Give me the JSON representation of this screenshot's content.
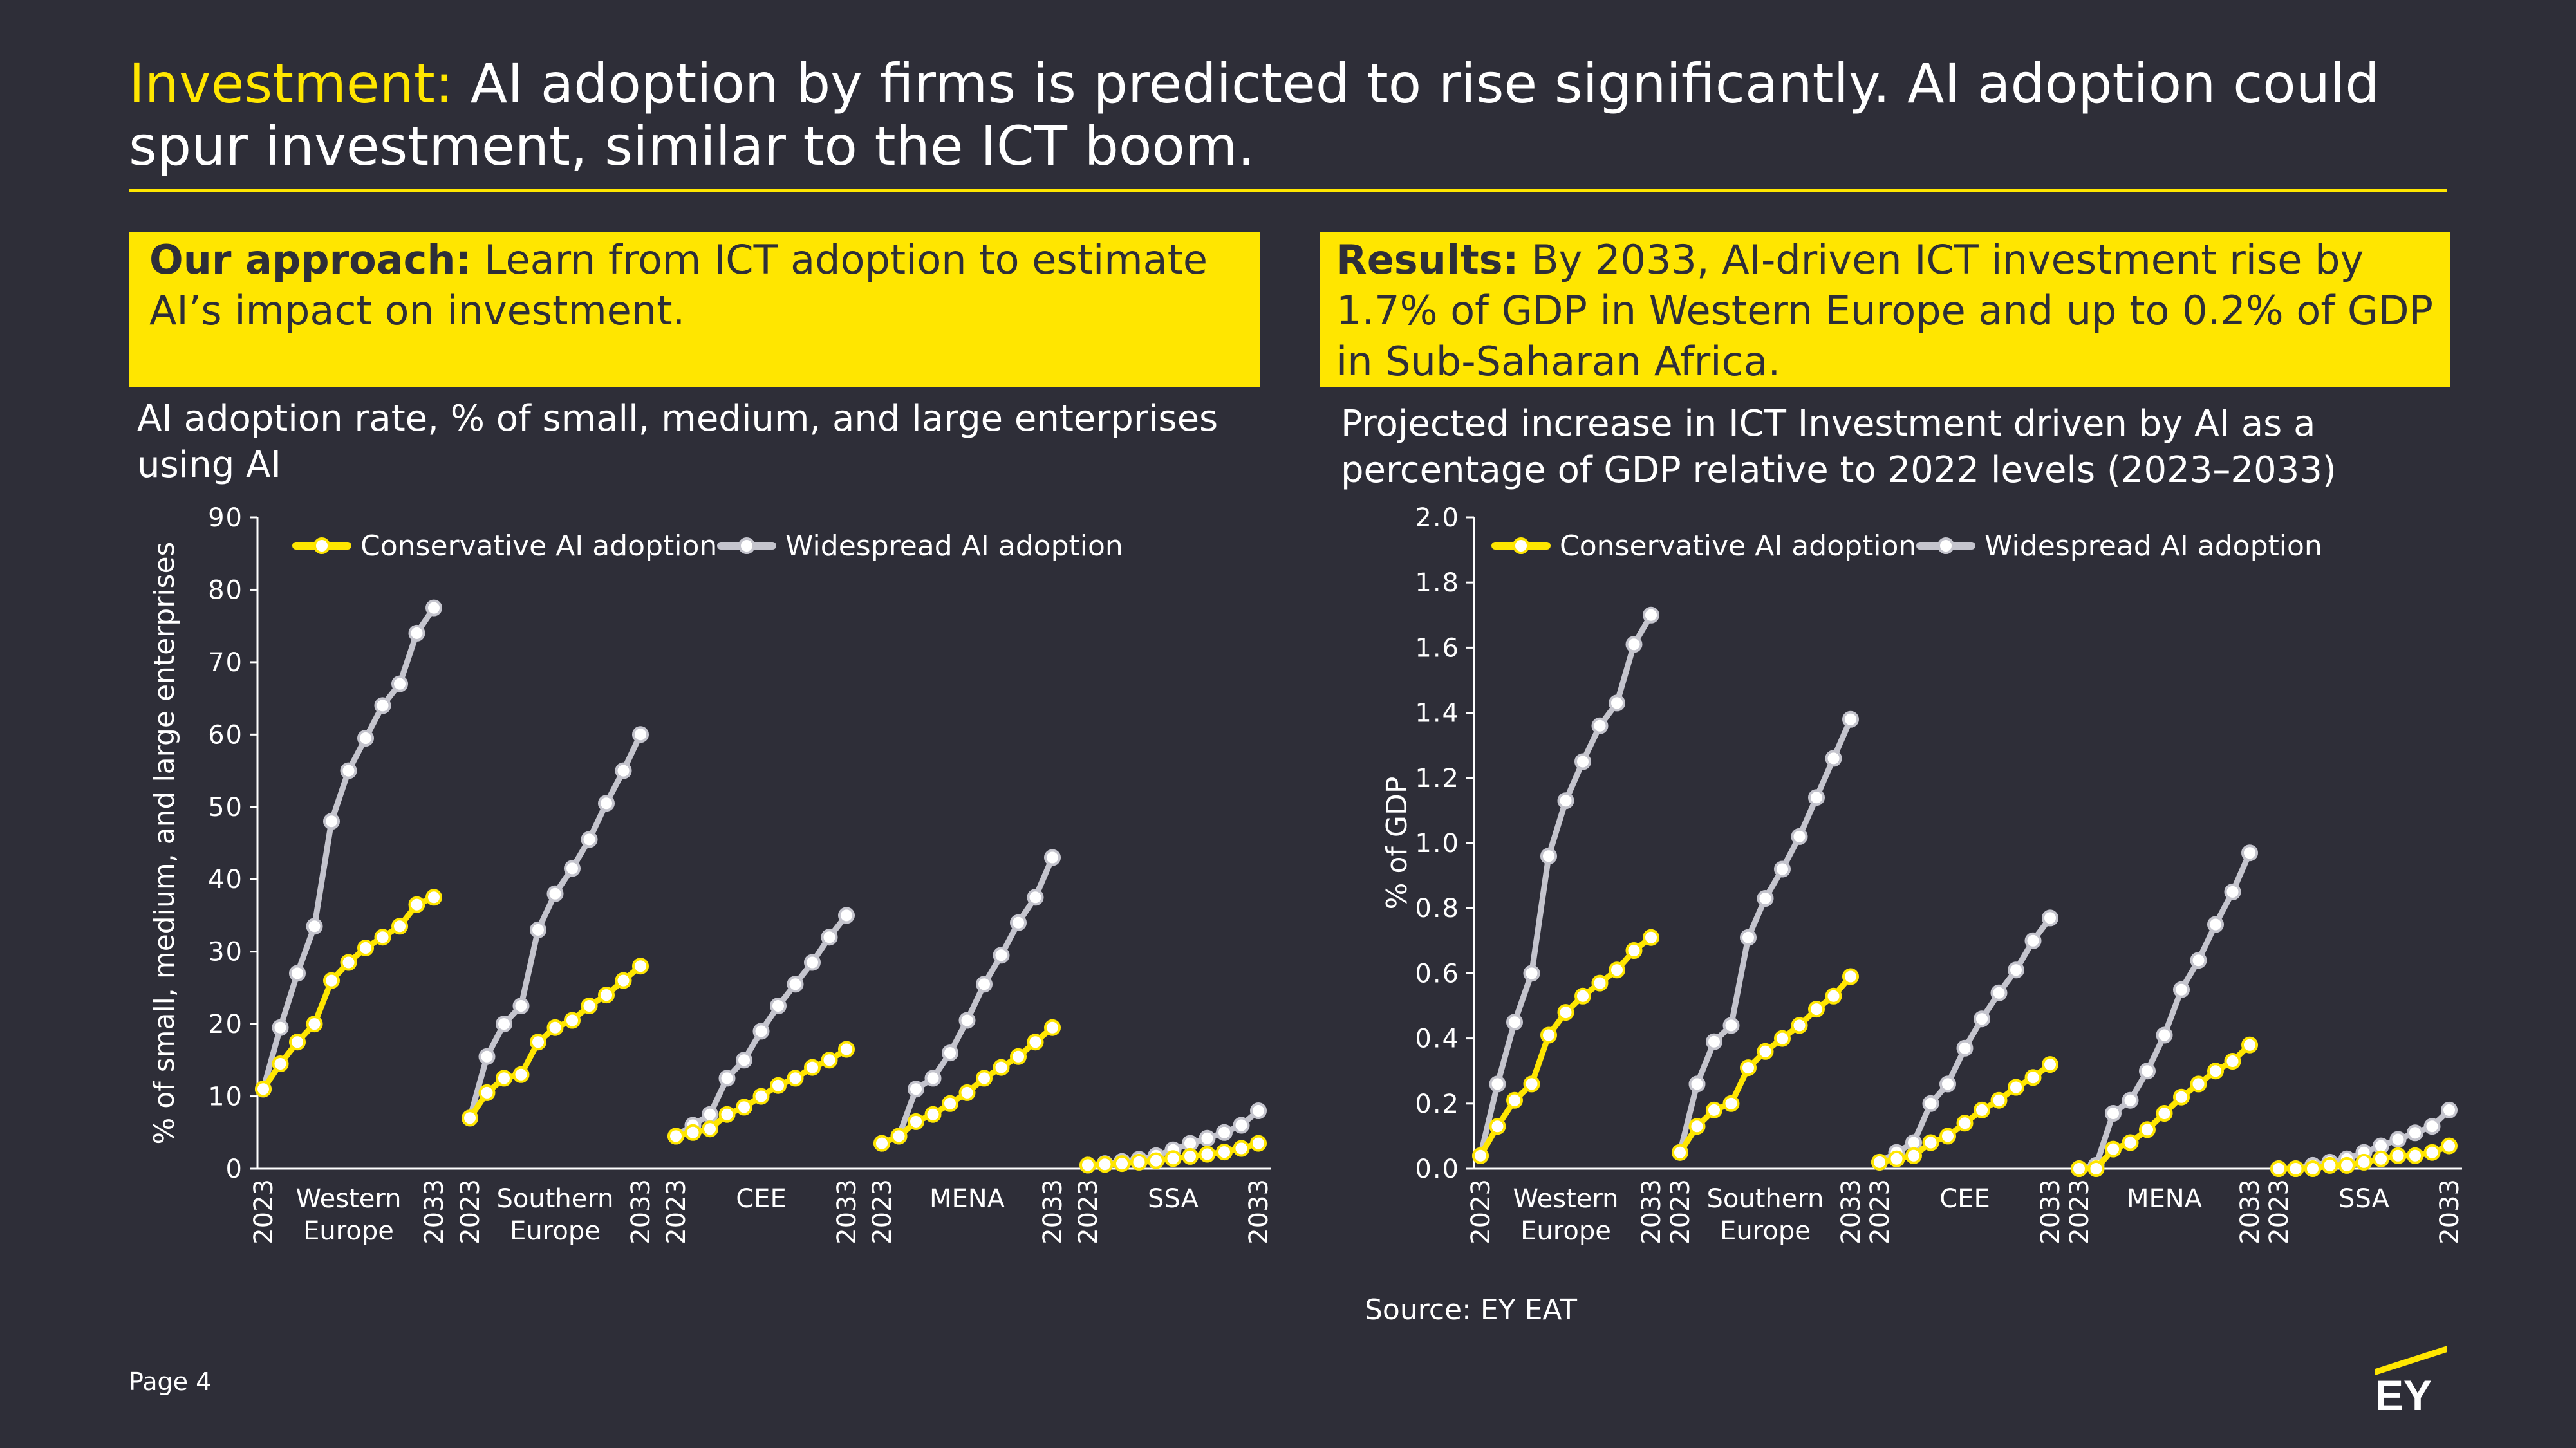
{
  "header": {
    "title_keyword": "Investment:",
    "title_rest": " AI adoption by firms is predicted to rise significantly. AI adoption could spur investment, similar to the ICT boom."
  },
  "approach": {
    "label": "Our approach:",
    "text": " Learn from ICT adoption to estimate AI’s impact on investment."
  },
  "results": {
    "label": "Results:",
    "text": "  By 2033, AI-driven ICT investment rise by 1.7% of GDP in Western Europe and up to 0.2% of GDP in Sub-Saharan Africa."
  },
  "colors": {
    "background": "#2e2e38",
    "accent": "#ffe600",
    "conservative": "#ffe600",
    "widespread": "#c4c4cd"
  },
  "chart_data": [
    {
      "type": "line",
      "title": "AI adoption rate, % of small, medium, and large enterprises using AI",
      "ylabel": "% of small, medium, and large enterprises",
      "ylim": [
        0,
        90
      ],
      "yticks": [
        "0",
        "10",
        "20",
        "30",
        "40",
        "50",
        "60",
        "70",
        "80",
        "90"
      ],
      "year_start": "2023",
      "year_end": "2033",
      "legend": [
        "Conservative AI adoption",
        "Widespread AI adoption"
      ],
      "groups": [
        {
          "name": [
            "Western",
            "Europe"
          ],
          "conservative": [
            11,
            14.5,
            17.5,
            20,
            26,
            28.5,
            30.5,
            32,
            33.5,
            36.5,
            37.5
          ],
          "widespread": [
            11,
            19.5,
            27,
            33.5,
            48,
            55,
            59.5,
            64,
            67,
            74,
            77.5
          ]
        },
        {
          "name": [
            "Southern",
            "Europe"
          ],
          "conservative": [
            7,
            10.5,
            12.5,
            13,
            17.5,
            19.5,
            20.5,
            22.5,
            24,
            26,
            28
          ],
          "widespread": [
            7,
            15.5,
            20,
            22.5,
            33,
            38,
            41.5,
            45.5,
            50.5,
            55,
            60
          ]
        },
        {
          "name": [
            "CEE"
          ],
          "conservative": [
            4.5,
            5,
            5.5,
            7.5,
            8.5,
            10,
            11.5,
            12.5,
            14,
            15,
            16.5
          ],
          "widespread": [
            4.5,
            6,
            7.5,
            12.5,
            15,
            19,
            22.5,
            25.5,
            28.5,
            32,
            35
          ]
        },
        {
          "name": [
            "MENA"
          ],
          "conservative": [
            3.5,
            4.5,
            6.5,
            7.5,
            9,
            10.5,
            12.5,
            14,
            15.5,
            17.5,
            19.5
          ],
          "widespread": [
            3.5,
            4.5,
            11,
            12.5,
            16,
            20.5,
            25.5,
            29.5,
            34,
            37.5,
            43
          ]
        },
        {
          "name": [
            "SSA"
          ],
          "conservative": [
            0.5,
            0.6,
            0.7,
            0.9,
            1.1,
            1.4,
            1.7,
            2.0,
            2.3,
            2.8,
            3.5
          ],
          "widespread": [
            0.5,
            0.7,
            1.0,
            1.3,
            1.8,
            2.6,
            3.5,
            4.2,
            5.0,
            6.0,
            8.0
          ]
        }
      ]
    },
    {
      "type": "line",
      "title": "Projected increase in ICT Investment driven by AI as a percentage of GDP relative to 2022 levels (2023–2033)",
      "ylabel": "% of GDP",
      "ylim": [
        0,
        2.0
      ],
      "yticks": [
        "0.0",
        "0.2",
        "0.4",
        "0.6",
        "0.8",
        "1.0",
        "1.2",
        "1.4",
        "1.6",
        "1.8",
        "2.0"
      ],
      "year_start": "2023",
      "year_end": "2033",
      "legend": [
        "Conservative AI adoption",
        "Widespread AI adoption"
      ],
      "groups": [
        {
          "name": [
            "Western",
            "Europe"
          ],
          "conservative": [
            0.04,
            0.13,
            0.21,
            0.26,
            0.41,
            0.48,
            0.53,
            0.57,
            0.61,
            0.67,
            0.71
          ],
          "widespread": [
            0.04,
            0.26,
            0.45,
            0.6,
            0.96,
            1.13,
            1.25,
            1.36,
            1.43,
            1.61,
            1.7
          ]
        },
        {
          "name": [
            "Southern",
            "Europe"
          ],
          "conservative": [
            0.05,
            0.13,
            0.18,
            0.2,
            0.31,
            0.36,
            0.4,
            0.44,
            0.49,
            0.53,
            0.59
          ],
          "widespread": [
            0.05,
            0.26,
            0.39,
            0.44,
            0.71,
            0.83,
            0.92,
            1.02,
            1.14,
            1.26,
            1.38
          ]
        },
        {
          "name": [
            "CEE"
          ],
          "conservative": [
            0.02,
            0.03,
            0.04,
            0.08,
            0.1,
            0.14,
            0.18,
            0.21,
            0.25,
            0.28,
            0.32
          ],
          "widespread": [
            0.02,
            0.05,
            0.08,
            0.2,
            0.26,
            0.37,
            0.46,
            0.54,
            0.61,
            0.7,
            0.77
          ]
        },
        {
          "name": [
            "MENA"
          ],
          "conservative": [
            0.0,
            0.0,
            0.06,
            0.08,
            0.12,
            0.17,
            0.22,
            0.26,
            0.3,
            0.33,
            0.38
          ],
          "widespread": [
            0.0,
            0.01,
            0.17,
            0.21,
            0.3,
            0.41,
            0.55,
            0.64,
            0.75,
            0.85,
            0.97
          ]
        },
        {
          "name": [
            "SSA"
          ],
          "conservative": [
            0.0,
            0.0,
            0.0,
            0.01,
            0.01,
            0.02,
            0.03,
            0.04,
            0.04,
            0.05,
            0.07
          ],
          "widespread": [
            0.0,
            0.0,
            0.01,
            0.02,
            0.03,
            0.05,
            0.07,
            0.09,
            0.11,
            0.13,
            0.18
          ]
        }
      ]
    }
  ],
  "footer": {
    "source": "Source: EY EAT",
    "page": "Page 4",
    "logo_text": "EY"
  }
}
